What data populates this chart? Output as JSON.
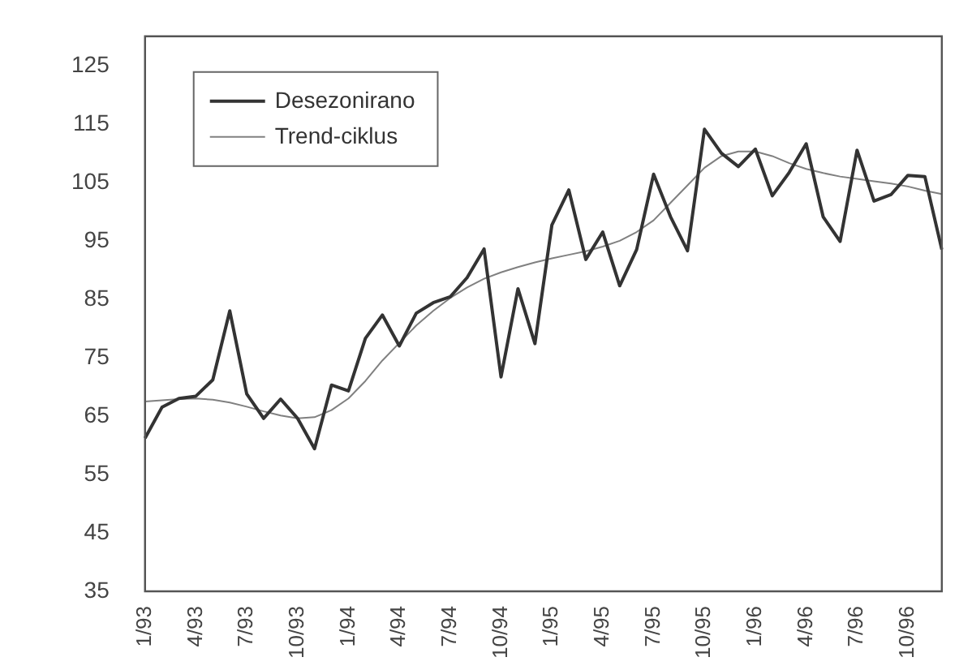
{
  "chart_data": {
    "type": "line",
    "categories": [
      "1/93",
      null,
      null,
      "4/93",
      null,
      null,
      "7/93",
      null,
      null,
      "10/93",
      null,
      null,
      "1/94",
      null,
      null,
      "4/94",
      null,
      null,
      "7/94",
      null,
      null,
      "10/94",
      null,
      null,
      "1/95",
      null,
      null,
      "4/95",
      null,
      null,
      "7/95",
      null,
      null,
      "10/95",
      null,
      null,
      "1/96",
      null,
      null,
      "4/96",
      null,
      null,
      "7/96",
      null,
      null,
      "10/96",
      null,
      null
    ],
    "series": [
      {
        "name": "Desezonirano",
        "color": "#333333",
        "values": [
          61.2,
          66.5,
          68,
          68.4,
          71.2,
          83,
          68.8,
          64.6,
          67.9,
          64.6,
          59.4,
          70.3,
          69.3,
          78.3,
          82.3,
          77,
          82.6,
          84.4,
          85.4,
          88.7,
          93.6,
          71.7,
          86.8,
          77.4,
          97.7,
          103.7,
          91.8,
          96.5,
          87.3,
          93.5,
          106.4,
          99.1,
          93.3,
          114.1,
          110,
          107.7,
          110.7,
          102.7,
          106.7,
          111.6,
          99.1,
          94.9,
          110.5,
          101.8,
          102.9,
          106.2,
          106,
          93.5
        ]
      },
      {
        "name": "Trend-ciklus",
        "color": "#808080",
        "values": [
          67.5,
          67.7,
          67.9,
          68,
          67.8,
          67.3,
          66.6,
          65.8,
          65.1,
          64.6,
          64.8,
          66,
          68,
          71,
          74.5,
          77.5,
          80.5,
          83,
          85.2,
          87,
          88.5,
          89.6,
          90.5,
          91.3,
          92,
          92.6,
          93.2,
          94,
          95,
          96.5,
          98.5,
          101.5,
          104.5,
          107.5,
          109.5,
          110.3,
          110.3,
          109.5,
          108.3,
          107.3,
          106.6,
          106,
          105.6,
          105.2,
          104.8,
          104.3,
          103.6,
          103
        ]
      }
    ],
    "ylim": [
      35,
      130
    ],
    "yticks": [
      35,
      45,
      55,
      65,
      75,
      85,
      95,
      105,
      115,
      125
    ],
    "grid": false,
    "legend": "top left",
    "marker": "none",
    "line_style": "solid"
  }
}
